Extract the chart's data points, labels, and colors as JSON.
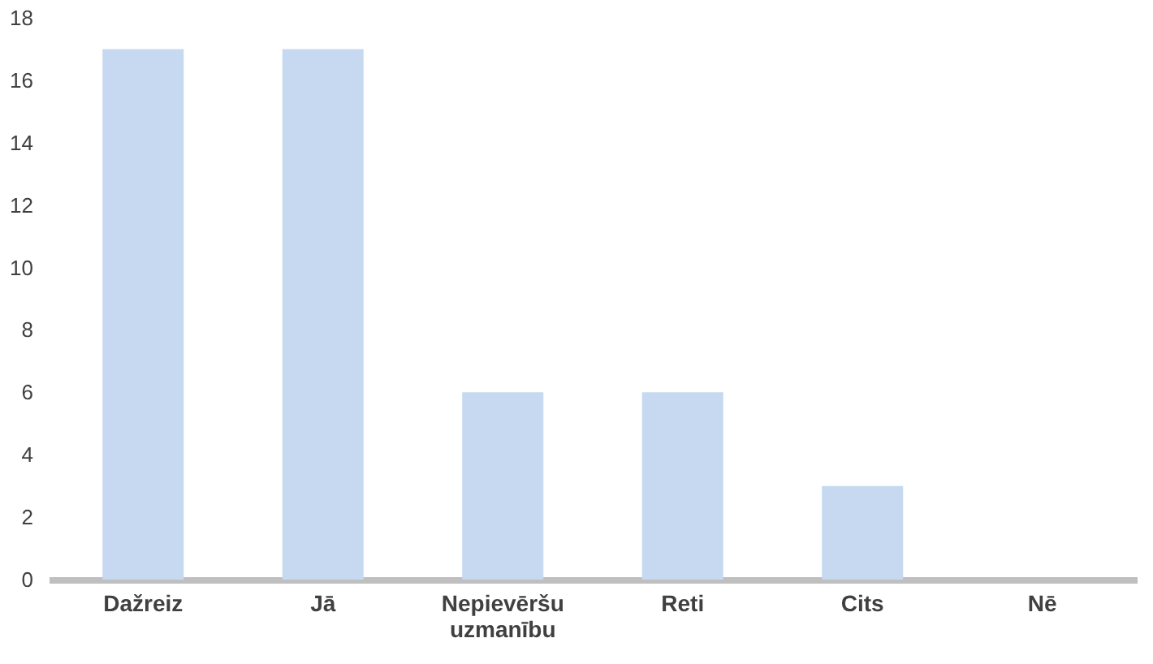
{
  "chart_data": {
    "type": "bar",
    "categories": [
      "Dažreiz",
      "Jā",
      "Nepievēršu uzmanību",
      "Reti",
      "Cits",
      "Nē"
    ],
    "values": [
      17,
      17,
      6,
      6,
      3,
      0
    ],
    "color": "#c6d9f1",
    "ylim": [
      0,
      18
    ],
    "yticks": [
      0,
      2,
      4,
      6,
      8,
      10,
      12,
      14,
      16,
      18
    ],
    "grid": false
  }
}
